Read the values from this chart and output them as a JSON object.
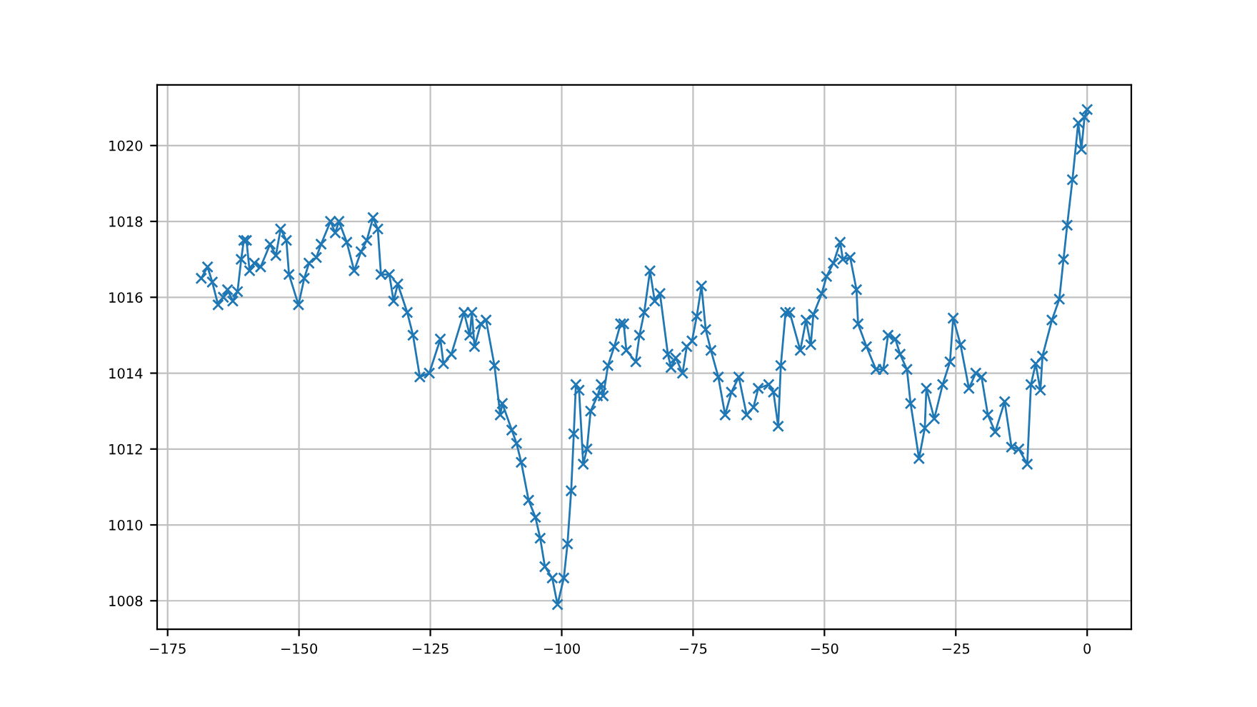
{
  "chart_data": {
    "type": "line",
    "marker": "cross",
    "grid": true,
    "line_style": "solid",
    "xlim": [
      -177,
      8.4
    ],
    "ylim": [
      1007.25,
      1021.6
    ],
    "xticks": [
      {
        "value": -175,
        "label": "−175"
      },
      {
        "value": -150,
        "label": "−150"
      },
      {
        "value": -125,
        "label": "−125"
      },
      {
        "value": -100,
        "label": "−100"
      },
      {
        "value": -75,
        "label": "−75"
      },
      {
        "value": -50,
        "label": "−50"
      },
      {
        "value": -25,
        "label": "−25"
      },
      0
    ],
    "yticks": [
      1008,
      1010,
      1012,
      1014,
      1016,
      1018,
      1020
    ],
    "series": [
      {
        "color": "#1f77b4",
        "x": [
          -168.6,
          -167.4,
          -166.5,
          -165.4,
          -164.4,
          -163.6,
          -162.6,
          -161.7,
          -161,
          -160.5,
          -160,
          -159.4,
          -158.5,
          -157.3,
          -155.5,
          -154.4,
          -153.5,
          -152.4,
          -151.9,
          -150.1,
          -149,
          -148.1,
          -146.7,
          -145.8,
          -144,
          -143.1,
          -142.4,
          -140.9,
          -139.5,
          -138.2,
          -137.1,
          -135.9,
          -135,
          -134.4,
          -132.8,
          -132,
          -131.2,
          -129.4,
          -128.3,
          -127,
          -125.2,
          -123.1,
          -122.5,
          -121,
          -118.6,
          -117.5,
          -117.1,
          -116.6,
          -115.4,
          -114.4,
          -112.8,
          -111.7,
          -111.3,
          -109.5,
          -108.6,
          -107.7,
          -106.3,
          -105,
          -104.1,
          -103.2,
          -101.8,
          -100.8,
          -99.6,
          -98.9,
          -98.2,
          -97.7,
          -97.3,
          -96.7,
          -95.9,
          -95.2,
          -94.5,
          -93.2,
          -92.5,
          -92.1,
          -91.2,
          -90,
          -88.8,
          -88.2,
          -87.7,
          -85.9,
          -85.2,
          -84.3,
          -83.2,
          -82.3,
          -81.3,
          -79.8,
          -79.2,
          -78.3,
          -77,
          -76.2,
          -75.2,
          -74.3,
          -73.4,
          -72.6,
          -71.6,
          -70.2,
          -68.9,
          -67.7,
          -66.3,
          -64.8,
          -63.5,
          -62.6,
          -60.6,
          -59.7,
          -58.8,
          -58.3,
          -57.4,
          -56.6,
          -54.6,
          -53.5,
          -52.6,
          -52.1,
          -50.5,
          -49.6,
          -48.3,
          -47,
          -46.5,
          -45.1,
          -43.9,
          -43.6,
          -42,
          -40.2,
          -38.8,
          -37.9,
          -36.5,
          -35.6,
          -34.3,
          -33.6,
          -32,
          -30.9,
          -30.6,
          -29.1,
          -27.5,
          -26.1,
          -25.5,
          -24.1,
          -22.5,
          -21.2,
          -20.1,
          -18.9,
          -17.5,
          -15.7,
          -14.4,
          -13,
          -11.4,
          -10.7,
          -9.8,
          -8.9,
          -8.5,
          -6.7,
          -5.3,
          -4.5,
          -3.8,
          -2.8,
          -1.7,
          -1.1,
          -0.5,
          0
        ],
        "values": [
          1016.5,
          1016.8,
          1016.4,
          1015.8,
          1016.0,
          1016.2,
          1015.9,
          1016.15,
          1017.0,
          1017.5,
          1017.5,
          1016.7,
          1016.9,
          1016.8,
          1017.4,
          1017.1,
          1017.8,
          1017.5,
          1016.6,
          1015.8,
          1016.5,
          1016.9,
          1017.05,
          1017.4,
          1018.0,
          1017.7,
          1018.0,
          1017.45,
          1016.7,
          1017.2,
          1017.5,
          1018.1,
          1017.8,
          1016.6,
          1016.6,
          1015.9,
          1016.35,
          1015.6,
          1015.0,
          1013.9,
          1014.0,
          1014.9,
          1014.25,
          1014.5,
          1015.6,
          1015.0,
          1015.6,
          1014.7,
          1015.3,
          1015.4,
          1014.2,
          1012.9,
          1013.2,
          1012.5,
          1012.15,
          1011.65,
          1010.65,
          1010.2,
          1009.65,
          1008.9,
          1008.6,
          1007.9,
          1008.6,
          1009.5,
          1010.9,
          1012.4,
          1013.7,
          1013.55,
          1011.6,
          1012.0,
          1013.0,
          1013.4,
          1013.7,
          1013.4,
          1014.2,
          1014.7,
          1015.3,
          1015.3,
          1014.6,
          1014.3,
          1015.0,
          1015.6,
          1016.7,
          1015.9,
          1016.1,
          1014.5,
          1014.15,
          1014.4,
          1014.0,
          1014.7,
          1014.85,
          1015.5,
          1016.3,
          1015.15,
          1014.6,
          1013.9,
          1012.9,
          1013.5,
          1013.9,
          1012.9,
          1013.1,
          1013.6,
          1013.7,
          1013.5,
          1012.6,
          1014.2,
          1015.6,
          1015.6,
          1014.6,
          1015.4,
          1014.75,
          1015.55,
          1016.1,
          1016.55,
          1016.9,
          1017.45,
          1017.0,
          1017.05,
          1016.2,
          1015.3,
          1014.7,
          1014.1,
          1014.1,
          1015.0,
          1014.9,
          1014.5,
          1014.1,
          1013.2,
          1011.75,
          1012.55,
          1013.6,
          1012.8,
          1013.7,
          1014.3,
          1015.45,
          1014.75,
          1013.6,
          1014.0,
          1013.9,
          1012.9,
          1012.45,
          1013.25,
          1012.05,
          1012.0,
          1011.6,
          1013.7,
          1014.25,
          1013.55,
          1014.45,
          1015.4,
          1015.95,
          1017.0,
          1017.9,
          1019.1,
          1020.6,
          1019.9,
          1020.75,
          1020.95
        ]
      }
    ]
  }
}
